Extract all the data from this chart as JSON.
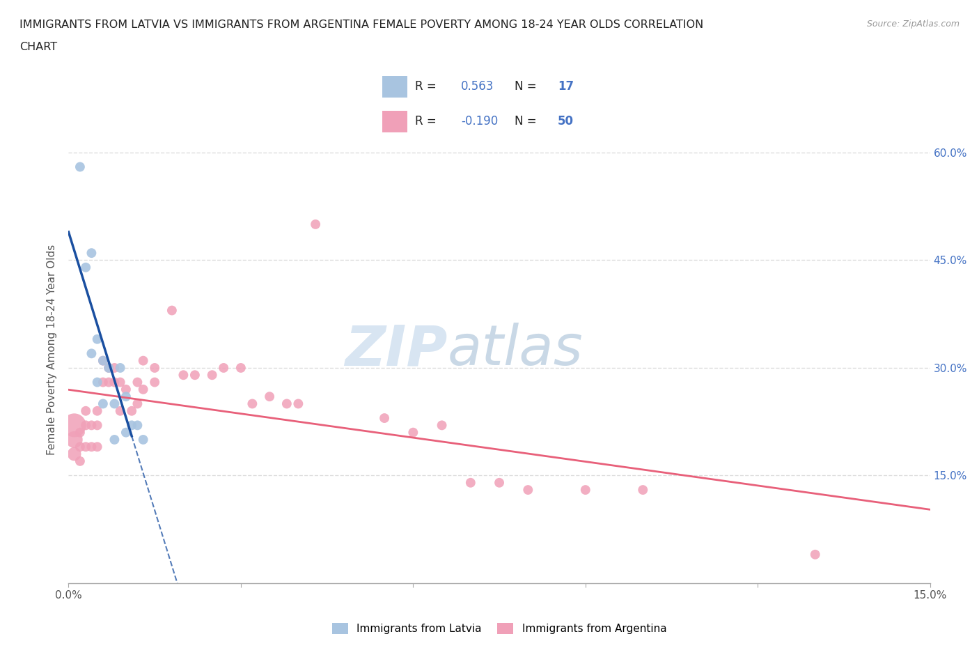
{
  "title_line1": "IMMIGRANTS FROM LATVIA VS IMMIGRANTS FROM ARGENTINA FEMALE POVERTY AMONG 18-24 YEAR OLDS CORRELATION",
  "title_line2": "CHART",
  "source": "Source: ZipAtlas.com",
  "ylabel": "Female Poverty Among 18-24 Year Olds",
  "xlim": [
    0.0,
    0.15
  ],
  "ylim": [
    0.0,
    0.65
  ],
  "xticks": [
    0.0,
    0.03,
    0.06,
    0.09,
    0.12,
    0.15
  ],
  "yticks": [
    0.0,
    0.15,
    0.3,
    0.45,
    0.6
  ],
  "ytick_labels_right": [
    "",
    "15.0%",
    "30.0%",
    "45.0%",
    "60.0%"
  ],
  "xtick_labels": [
    "0.0%",
    "",
    "",
    "",
    "",
    "15.0%"
  ],
  "watermark_zip": "ZIP",
  "watermark_atlas": "atlas",
  "latvia_color": "#a8c4e0",
  "argentina_color": "#f0a0b8",
  "latvia_line_color": "#1a4fa0",
  "argentina_line_color": "#e8607a",
  "R_latvia": 0.563,
  "N_latvia": 17,
  "R_argentina": -0.19,
  "N_argentina": 50,
  "latvia_x": [
    0.002,
    0.003,
    0.004,
    0.004,
    0.005,
    0.005,
    0.006,
    0.006,
    0.007,
    0.008,
    0.008,
    0.009,
    0.01,
    0.01,
    0.011,
    0.012,
    0.013
  ],
  "latvia_y": [
    0.58,
    0.44,
    0.46,
    0.32,
    0.34,
    0.28,
    0.31,
    0.25,
    0.3,
    0.2,
    0.25,
    0.3,
    0.21,
    0.26,
    0.22,
    0.22,
    0.2
  ],
  "latvia_sizes": [
    100,
    100,
    100,
    100,
    100,
    100,
    100,
    100,
    100,
    100,
    100,
    100,
    100,
    100,
    100,
    100,
    100
  ],
  "argentina_x": [
    0.001,
    0.001,
    0.001,
    0.002,
    0.002,
    0.002,
    0.003,
    0.003,
    0.003,
    0.004,
    0.004,
    0.005,
    0.005,
    0.005,
    0.006,
    0.006,
    0.007,
    0.007,
    0.008,
    0.008,
    0.009,
    0.009,
    0.01,
    0.011,
    0.012,
    0.012,
    0.013,
    0.013,
    0.015,
    0.015,
    0.018,
    0.02,
    0.022,
    0.025,
    0.027,
    0.03,
    0.032,
    0.035,
    0.038,
    0.04,
    0.043,
    0.055,
    0.06,
    0.065,
    0.07,
    0.075,
    0.08,
    0.09,
    0.1,
    0.13
  ],
  "argentina_y": [
    0.22,
    0.2,
    0.18,
    0.21,
    0.19,
    0.17,
    0.24,
    0.22,
    0.19,
    0.22,
    0.19,
    0.24,
    0.22,
    0.19,
    0.31,
    0.28,
    0.3,
    0.28,
    0.3,
    0.28,
    0.28,
    0.24,
    0.27,
    0.24,
    0.28,
    0.25,
    0.31,
    0.27,
    0.3,
    0.28,
    0.38,
    0.29,
    0.29,
    0.29,
    0.3,
    0.3,
    0.25,
    0.26,
    0.25,
    0.25,
    0.5,
    0.23,
    0.21,
    0.22,
    0.14,
    0.14,
    0.13,
    0.13,
    0.13,
    0.04
  ],
  "argentina_sizes": [
    600,
    300,
    200,
    100,
    100,
    100,
    100,
    100,
    100,
    100,
    100,
    100,
    100,
    100,
    100,
    100,
    100,
    100,
    100,
    100,
    100,
    100,
    100,
    100,
    100,
    100,
    100,
    100,
    100,
    100,
    100,
    100,
    100,
    100,
    100,
    100,
    100,
    100,
    100,
    100,
    100,
    100,
    100,
    100,
    100,
    100,
    100,
    100,
    100,
    100
  ],
  "background_color": "#ffffff",
  "grid_color": "#dddddd",
  "legend_R_color": "#4472c4",
  "legend_N_color": "#4472c4",
  "legend_text_color": "#222222"
}
